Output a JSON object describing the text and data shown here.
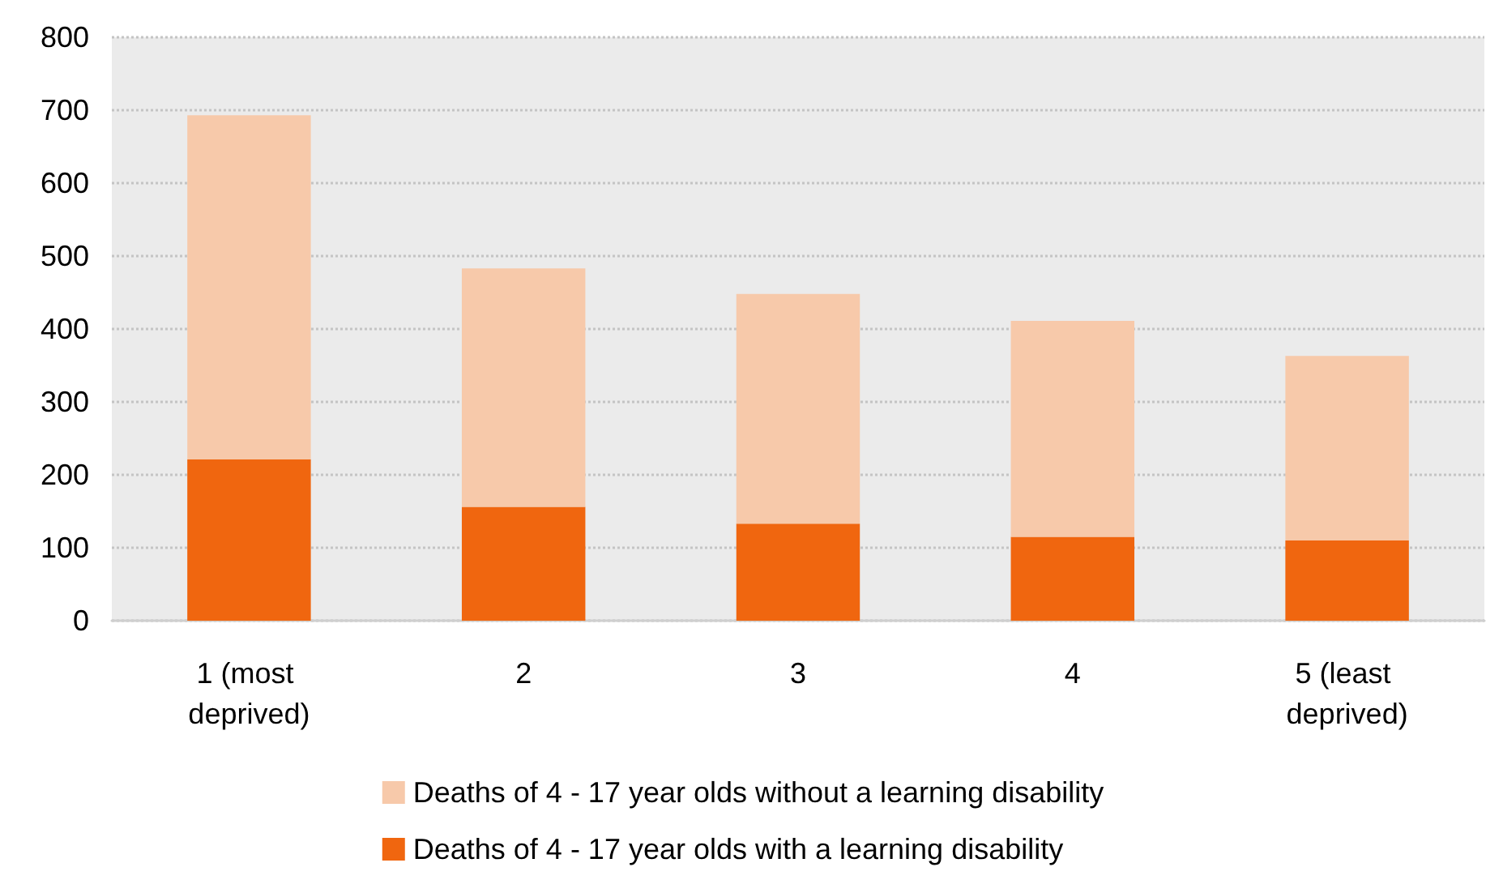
{
  "chart_data": {
    "type": "bar",
    "stacked": true,
    "categories": [
      "1 (most deprived)",
      "2",
      "3",
      "4",
      "5 (least deprived)"
    ],
    "series": [
      {
        "name": "Deaths of 4 - 17 year olds with a learning disability",
        "color": "#f0660f",
        "values": [
          221,
          156,
          133,
          115,
          110
        ]
      },
      {
        "name": "Deaths of 4 - 17 year olds without a learning disability",
        "color": "#f7c9aa",
        "values": [
          472,
          327,
          315,
          296,
          253
        ]
      }
    ],
    "ylim": [
      0,
      800
    ],
    "yticks": [
      0,
      100,
      200,
      300,
      400,
      500,
      600,
      700,
      800
    ],
    "grid": "y",
    "legend": "bottom"
  }
}
